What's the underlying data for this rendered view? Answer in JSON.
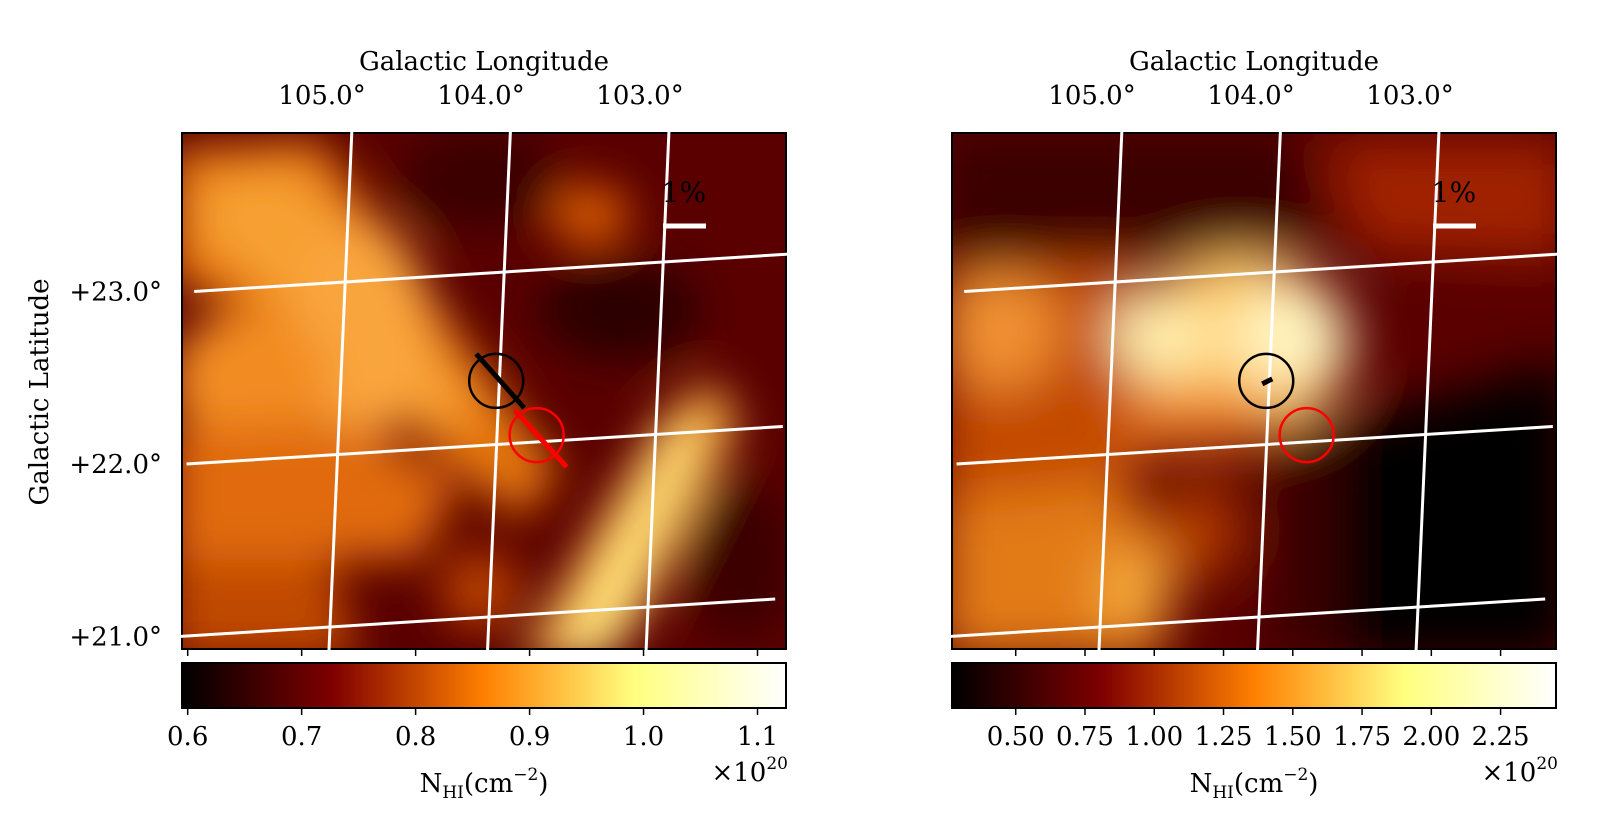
{
  "chart_data": [
    {
      "type": "heatmap",
      "title": "",
      "xlabel": "Galactic Longitude",
      "ylabel": "Galactic Latitude",
      "x_ticks": [
        {
          "value": 105.0,
          "label": "105.0°"
        },
        {
          "value": 104.0,
          "label": "104.0°"
        },
        {
          "value": 103.0,
          "label": "103.0°"
        }
      ],
      "y_ticks": [
        {
          "value": 23.0,
          "label": "+23.0°"
        },
        {
          "value": 22.0,
          "label": "+22.0°"
        },
        {
          "value": 21.0,
          "label": "+21.0°"
        }
      ],
      "grid": true,
      "colormap": "afmhot",
      "colorbar": {
        "label": "N_HI(cm^-2)",
        "label_main": "N",
        "label_sub": "HI",
        "label_unit": "(cm",
        "label_exp": "−2",
        "label_close": ")",
        "multiplier": "×10",
        "multiplier_exp": "20",
        "min": 0.595,
        "max": 1.125,
        "ticks": [
          {
            "value": 0.6,
            "label": "0.6"
          },
          {
            "value": 0.7,
            "label": "0.7"
          },
          {
            "value": 0.8,
            "label": "0.8"
          },
          {
            "value": 0.9,
            "label": "0.9"
          },
          {
            "value": 1.0,
            "label": "1.0"
          },
          {
            "value": 1.1,
            "label": "1.1"
          }
        ]
      },
      "scale_bar_label": "1%",
      "markers": [
        {
          "name": "black-circle",
          "color": "#000000"
        },
        {
          "name": "red-circle",
          "color": "#ff0000"
        }
      ]
    },
    {
      "type": "heatmap",
      "title": "",
      "xlabel": "Galactic Longitude",
      "ylabel": "",
      "x_ticks": [
        {
          "value": 105.0,
          "label": "105.0°"
        },
        {
          "value": 104.0,
          "label": "104.0°"
        },
        {
          "value": 103.0,
          "label": "103.0°"
        }
      ],
      "y_ticks": [],
      "grid": true,
      "colormap": "afmhot",
      "colorbar": {
        "label": "N_HI(cm^-2)",
        "label_main": "N",
        "label_sub": "HI",
        "label_unit": "(cm",
        "label_exp": "−2",
        "label_close": ")",
        "multiplier": "×10",
        "multiplier_exp": "20",
        "min": 0.27,
        "max": 2.45,
        "ticks": [
          {
            "value": 0.5,
            "label": "0.50"
          },
          {
            "value": 0.75,
            "label": "0.75"
          },
          {
            "value": 1.0,
            "label": "1.00"
          },
          {
            "value": 1.25,
            "label": "1.25"
          },
          {
            "value": 1.5,
            "label": "1.50"
          },
          {
            "value": 1.75,
            "label": "1.75"
          },
          {
            "value": 2.0,
            "label": "2.00"
          },
          {
            "value": 2.25,
            "label": "2.25"
          }
        ]
      },
      "scale_bar_label": "1%",
      "markers": [
        {
          "name": "black-circle",
          "color": "#000000"
        },
        {
          "name": "red-circle",
          "color": "#ff0000"
        }
      ]
    }
  ]
}
